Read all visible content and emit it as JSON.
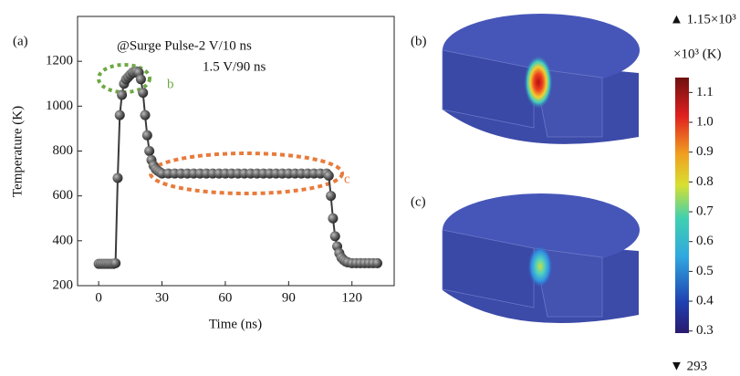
{
  "chart_data": {
    "type": "line",
    "panel_label": "(a)",
    "annotations": [
      "@Surge Pulse-2 V/10 ns",
      "1.5 V/90 ns",
      "b",
      "c"
    ],
    "xlabel": "Time (ns)",
    "ylabel": "Temperature (K)",
    "xlim": [
      -10,
      140
    ],
    "ylim": [
      200,
      1400
    ],
    "xticks": [
      0,
      30,
      60,
      90,
      120
    ],
    "yticks": [
      200,
      400,
      600,
      800,
      1000,
      1200
    ],
    "color": "#3a3a3a",
    "x": [
      0,
      1,
      2,
      3,
      4,
      5,
      6,
      7,
      8,
      9,
      10,
      11,
      12,
      13,
      14,
      15,
      16,
      17,
      18,
      19,
      20,
      21,
      22,
      23,
      24,
      25,
      26,
      27,
      28,
      29,
      30,
      33,
      36,
      39,
      42,
      45,
      48,
      51,
      54,
      57,
      60,
      63,
      66,
      69,
      72,
      75,
      78,
      81,
      84,
      87,
      90,
      93,
      96,
      99,
      102,
      105,
      108,
      109,
      110,
      111,
      112,
      113,
      114,
      115,
      116,
      117,
      118,
      120,
      122,
      124,
      126,
      128,
      130,
      132
    ],
    "values": [
      297,
      297,
      297,
      297,
      297,
      297,
      297,
      297,
      300,
      680,
      960,
      1050,
      1100,
      1120,
      1130,
      1140,
      1150,
      1150,
      1155,
      1150,
      1120,
      1060,
      960,
      870,
      800,
      760,
      735,
      720,
      712,
      706,
      700,
      700,
      700,
      700,
      700,
      700,
      700,
      700,
      700,
      700,
      700,
      700,
      700,
      700,
      700,
      700,
      700,
      700,
      700,
      700,
      700,
      700,
      700,
      700,
      700,
      700,
      700,
      690,
      600,
      500,
      420,
      375,
      345,
      325,
      315,
      308,
      304,
      300,
      300,
      300,
      300,
      300,
      300,
      300
    ]
  },
  "panels": {
    "b": "(b)",
    "c": "(c)"
  },
  "colorbar": {
    "unit": "×10³ (K)",
    "max_label": "▲ 1.15×10³",
    "min_label": "▼ 293",
    "lim": [
      0.293,
      1.15
    ],
    "ticks": [
      0.3,
      0.4,
      0.5,
      0.6,
      0.7,
      0.8,
      0.9,
      {
        "value": 1,
        "label": "1.0"
      },
      1.1
    ]
  }
}
